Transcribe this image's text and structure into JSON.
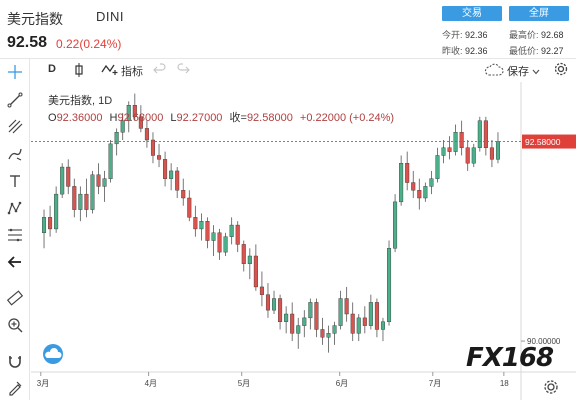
{
  "header": {
    "title": "美元指数",
    "code": "DINI",
    "price": "92.58",
    "change": "0.22(0.24%)",
    "buttons": {
      "trade": "交易",
      "fullscreen": "全屏"
    },
    "stats": {
      "open_label": "今开:",
      "open": "92.36",
      "high_label": "最高价:",
      "high": "92.68",
      "prev_label": "昨收:",
      "prev": "92.36",
      "low_label": "最低价:",
      "low": "92.27"
    }
  },
  "toolbar": {
    "interval": "D",
    "indicators_label": "指标",
    "save_label": "保存"
  },
  "legend": {
    "symbol": "美元指数, 1D",
    "o_label": "O",
    "o": "92.36000",
    "h_label": "H",
    "h": "92.68000",
    "l_label": "L",
    "l": "92.27000",
    "c_label": "收=",
    "c": "92.58000",
    "chg": "+0.22000 (+0.24%)"
  },
  "watermark": "FX168",
  "colors": {
    "up": "#26a69a",
    "down": "#ef5350",
    "candle_up": "#4caf8a",
    "candle_down": "#d9534f",
    "accent": "#3a9be3",
    "price_line": "#e0403a"
  },
  "chart_data": {
    "type": "candlestick",
    "x_ticks": [
      "3月",
      "4月",
      "5月",
      "6月",
      "7月",
      "18"
    ],
    "y_ticks": [
      90.0
    ],
    "y_tick_labels": [
      "90.00000"
    ],
    "last_price_label": "92.58000",
    "last_price": 92.58,
    "ylim": [
      89.6,
      93.35
    ],
    "candles": [
      [
        91.4,
        91.7,
        91.2,
        91.6
      ],
      [
        91.6,
        91.75,
        91.35,
        91.45
      ],
      [
        91.45,
        92.0,
        91.4,
        91.9
      ],
      [
        91.9,
        92.3,
        91.85,
        92.25
      ],
      [
        92.25,
        92.35,
        91.9,
        92.0
      ],
      [
        92.0,
        92.1,
        91.6,
        91.7
      ],
      [
        91.7,
        92.0,
        91.55,
        91.9
      ],
      [
        91.9,
        92.1,
        91.6,
        91.7
      ],
      [
        91.7,
        92.2,
        91.65,
        92.15
      ],
      [
        92.15,
        92.3,
        91.9,
        92.0
      ],
      [
        92.0,
        92.2,
        91.8,
        92.1
      ],
      [
        92.1,
        92.6,
        92.05,
        92.55
      ],
      [
        92.55,
        92.75,
        92.4,
        92.7
      ],
      [
        92.7,
        92.95,
        92.6,
        92.85
      ],
      [
        92.85,
        93.1,
        92.7,
        93.05
      ],
      [
        93.05,
        93.2,
        92.85,
        92.9
      ],
      [
        92.9,
        93.05,
        92.7,
        92.75
      ],
      [
        92.75,
        92.85,
        92.5,
        92.6
      ],
      [
        92.6,
        92.7,
        92.3,
        92.4
      ],
      [
        92.4,
        92.55,
        92.25,
        92.35
      ],
      [
        92.35,
        92.45,
        92.0,
        92.1
      ],
      [
        92.1,
        92.3,
        91.95,
        92.2
      ],
      [
        92.2,
        92.25,
        91.85,
        91.95
      ],
      [
        91.95,
        92.1,
        91.75,
        91.85
      ],
      [
        91.85,
        91.95,
        91.55,
        91.6
      ],
      [
        91.6,
        91.75,
        91.35,
        91.45
      ],
      [
        91.45,
        91.65,
        91.3,
        91.55
      ],
      [
        91.55,
        91.6,
        91.2,
        91.3
      ],
      [
        91.3,
        91.5,
        91.1,
        91.4
      ],
      [
        91.4,
        91.45,
        91.05,
        91.15
      ],
      [
        91.15,
        91.4,
        91.1,
        91.35
      ],
      [
        91.35,
        91.6,
        91.25,
        91.5
      ],
      [
        91.5,
        91.55,
        91.15,
        91.25
      ],
      [
        91.25,
        91.3,
        90.9,
        91.0
      ],
      [
        91.0,
        91.2,
        90.8,
        91.1
      ],
      [
        91.1,
        91.25,
        90.65,
        90.7
      ],
      [
        90.7,
        90.9,
        90.45,
        90.6
      ],
      [
        90.6,
        90.75,
        90.3,
        90.4
      ],
      [
        90.4,
        90.65,
        90.35,
        90.55
      ],
      [
        90.55,
        90.6,
        90.15,
        90.25
      ],
      [
        90.25,
        90.45,
        90.1,
        90.35
      ],
      [
        90.35,
        90.5,
        90.0,
        90.1
      ],
      [
        90.1,
        90.3,
        89.9,
        90.2
      ],
      [
        90.2,
        90.4,
        90.05,
        90.3
      ],
      [
        90.3,
        90.55,
        90.15,
        90.5
      ],
      [
        90.5,
        90.55,
        90.05,
        90.15
      ],
      [
        90.15,
        90.3,
        89.95,
        90.05
      ],
      [
        90.05,
        90.2,
        89.85,
        90.1
      ],
      [
        90.1,
        90.25,
        89.95,
        90.2
      ],
      [
        90.2,
        90.65,
        90.15,
        90.55
      ],
      [
        90.55,
        90.7,
        90.25,
        90.35
      ],
      [
        90.35,
        90.5,
        90.0,
        90.1
      ],
      [
        90.1,
        90.35,
        90.0,
        90.3
      ],
      [
        90.3,
        90.45,
        90.1,
        90.2
      ],
      [
        90.2,
        90.6,
        90.15,
        90.5
      ],
      [
        90.5,
        90.55,
        90.05,
        90.15
      ],
      [
        90.15,
        90.3,
        90.0,
        90.25
      ],
      [
        90.25,
        91.3,
        90.2,
        91.2
      ],
      [
        91.2,
        91.9,
        91.15,
        91.8
      ],
      [
        91.8,
        92.4,
        91.75,
        92.3
      ],
      [
        92.3,
        92.45,
        91.95,
        92.05
      ],
      [
        92.05,
        92.2,
        91.85,
        91.95
      ],
      [
        91.95,
        92.1,
        91.7,
        91.85
      ],
      [
        91.85,
        92.05,
        91.8,
        92.0
      ],
      [
        92.0,
        92.2,
        91.9,
        92.1
      ],
      [
        92.1,
        92.5,
        92.05,
        92.4
      ],
      [
        92.4,
        92.6,
        92.3,
        92.5
      ],
      [
        92.5,
        92.65,
        92.35,
        92.45
      ],
      [
        92.45,
        92.8,
        92.4,
        92.7
      ],
      [
        92.7,
        92.85,
        92.4,
        92.5
      ],
      [
        92.5,
        92.6,
        92.2,
        92.3
      ],
      [
        92.3,
        92.55,
        92.25,
        92.5
      ],
      [
        92.5,
        92.9,
        92.45,
        92.85
      ],
      [
        92.85,
        92.9,
        92.4,
        92.5
      ],
      [
        92.5,
        92.6,
        92.25,
        92.35
      ],
      [
        92.35,
        92.7,
        92.3,
        92.58
      ]
    ]
  }
}
